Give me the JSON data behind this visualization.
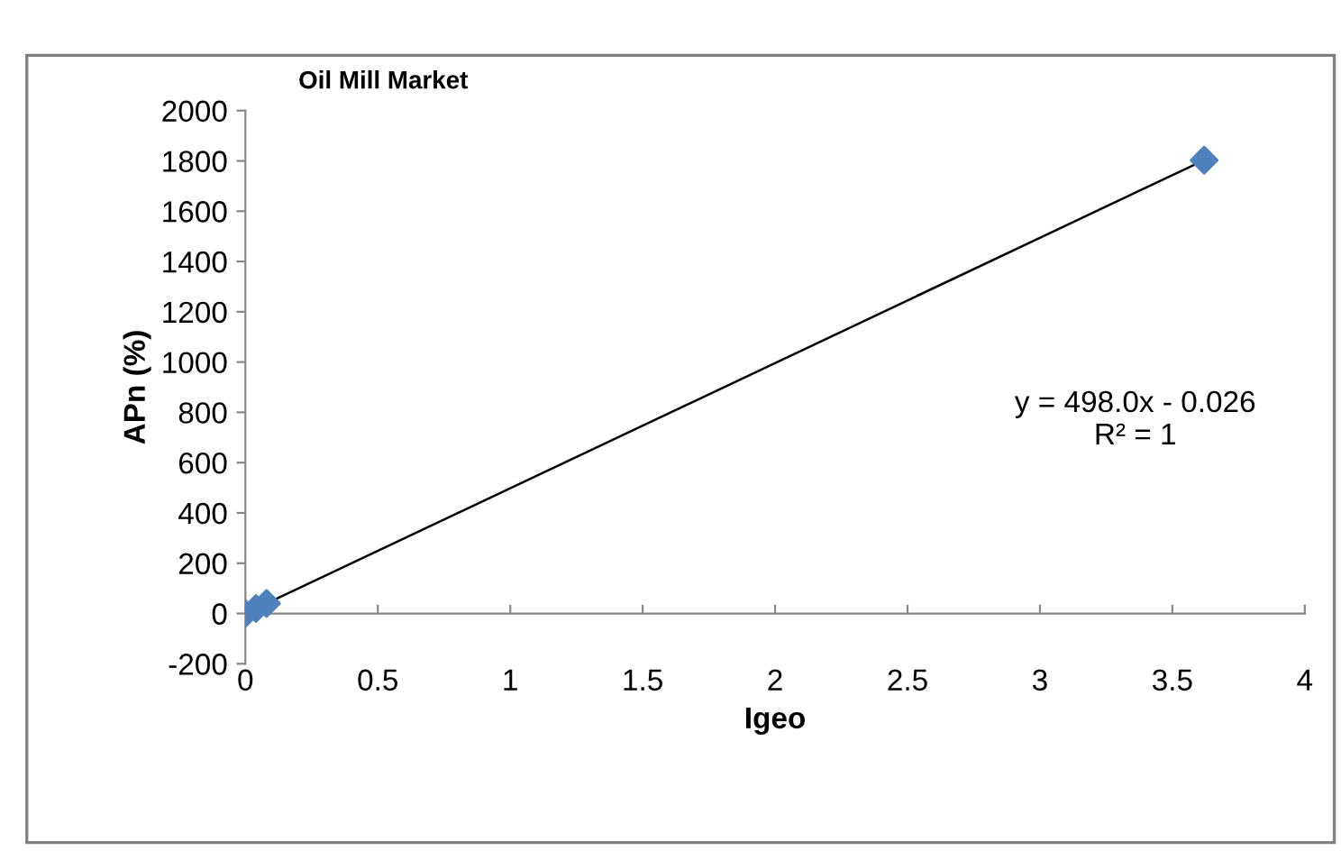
{
  "chart_data": {
    "type": "scatter",
    "title": "Oil Mill Market",
    "xlabel": "Igeo",
    "ylabel": "APn (%)",
    "annotations": [
      "y = 498.0x - 0.026\nR² = 1"
    ],
    "series": [
      {
        "color": "#4f81bd",
        "marker": "diamond",
        "x": [
          0,
          0.04,
          0.08,
          3.62
        ],
        "values": [
          0,
          20,
          40,
          1803
        ]
      },
      {
        "type": "line",
        "color": "#000000",
        "marker": "none",
        "line_style": "solid",
        "x": [
          0,
          3.62
        ],
        "values": [
          0,
          1803
        ]
      }
    ],
    "xlim": [
      0,
      4
    ],
    "xticks": [
      0,
      0.5,
      1,
      1.5,
      2,
      2.5,
      3,
      3.5,
      4
    ],
    "ylim": [
      -200,
      2000
    ],
    "yticks": [
      -200,
      0,
      200,
      400,
      600,
      800,
      1000,
      1200,
      1400,
      1600,
      1800,
      2000
    ],
    "grid": false,
    "legend": false
  }
}
